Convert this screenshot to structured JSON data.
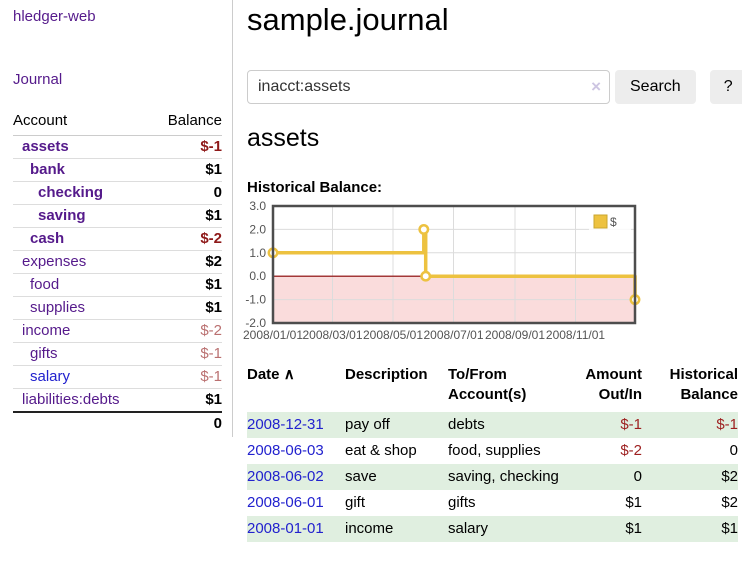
{
  "sidebar": {
    "brand": "hledger-web",
    "journal_link": "Journal",
    "accounts_table": {
      "header_account": "Account",
      "header_balance": "Balance",
      "rows": [
        {
          "name": "assets",
          "level": 1,
          "bold": true,
          "balance": "$-1",
          "tone": "neg"
        },
        {
          "name": "bank",
          "level": 2,
          "bold": true,
          "balance": "$1",
          "tone": "pos"
        },
        {
          "name": "checking",
          "level": 3,
          "bold": true,
          "balance": "0",
          "tone": "pos"
        },
        {
          "name": "saving",
          "level": 3,
          "bold": true,
          "balance": "$1",
          "tone": "pos"
        },
        {
          "name": "cash",
          "level": 2,
          "bold": true,
          "balance": "$-2",
          "tone": "neg"
        },
        {
          "name": "expenses",
          "level": 1,
          "bold": false,
          "balance": "$2",
          "tone": "pos"
        },
        {
          "name": "food",
          "level": 2,
          "bold": false,
          "balance": "$1",
          "tone": "pos"
        },
        {
          "name": "supplies",
          "level": 2,
          "bold": false,
          "balance": "$1",
          "tone": "pos"
        },
        {
          "name": "income",
          "level": 1,
          "bold": false,
          "balance": "$-2",
          "tone": "soft"
        },
        {
          "name": "gifts",
          "level": 2,
          "bold": false,
          "balance": "$-1",
          "tone": "soft"
        },
        {
          "name": "salary",
          "level": 2,
          "bold": false,
          "blue": true,
          "balance": "$-1",
          "tone": "soft"
        },
        {
          "name": "liabilities:debts",
          "level": 1,
          "bold": false,
          "balance": "$1",
          "tone": "pos"
        }
      ],
      "total": "0"
    }
  },
  "main": {
    "title": "sample.journal",
    "search": {
      "value": "inacct:assets",
      "clear_icon": "×",
      "button_label": "Search",
      "help_label": "?"
    },
    "account_heading": "assets",
    "chart_heading": "Historical Balance:",
    "register": {
      "headers": {
        "date": "Date",
        "sort_icon": "∧",
        "description": "Description",
        "accounts": "To/From Account(s)",
        "amount": "Amount Out/In",
        "balance": "Historical Balance"
      },
      "rows": [
        {
          "date": "2008-12-31",
          "description": "pay off",
          "accounts": "debts",
          "amount": "$-1",
          "amount_tone": "neg-t",
          "balance": "$-1",
          "balance_tone": "neg-t"
        },
        {
          "date": "2008-06-03",
          "description": "eat & shop",
          "accounts": "food, supplies",
          "amount": "$-2",
          "amount_tone": "neg-t",
          "balance": "0",
          "balance_tone": ""
        },
        {
          "date": "2008-06-02",
          "description": "save",
          "accounts": "saving, checking",
          "amount": "0",
          "amount_tone": "",
          "balance": "$2",
          "balance_tone": ""
        },
        {
          "date": "2008-06-01",
          "description": "gift",
          "accounts": "gifts",
          "amount": "$1",
          "amount_tone": "",
          "balance": "$2",
          "balance_tone": ""
        },
        {
          "date": "2008-01-01",
          "description": "income",
          "accounts": "salary",
          "amount": "$1",
          "amount_tone": "",
          "balance": "$1",
          "balance_tone": ""
        }
      ]
    }
  },
  "chart_data": {
    "type": "line",
    "step": true,
    "title": "Historical Balance:",
    "legend": "$",
    "legend_position": "top-right",
    "grid": true,
    "x_range": [
      "2008-01-01",
      "2008-12-31"
    ],
    "ylim": [
      -2,
      3
    ],
    "y_ticks": [
      "3.0",
      "2.0",
      "1.0",
      "0.0",
      "-1.0",
      "-2.0"
    ],
    "x_ticks": [
      {
        "date": "2008-01-01",
        "label": "2008/01/01"
      },
      {
        "date": "2008-03-01",
        "label": "2008/03/01"
      },
      {
        "date": "2008-05-01",
        "label": "2008/05/01"
      },
      {
        "date": "2008-07-01",
        "label": "2008/07/01"
      },
      {
        "date": "2008-09-01",
        "label": "2008/09/01"
      },
      {
        "date": "2008-11-01",
        "label": "2008/11/01"
      }
    ],
    "series": [
      {
        "name": "$",
        "color": "#EDC240",
        "points": [
          [
            "2008-01-01",
            1
          ],
          [
            "2008-06-01",
            2
          ],
          [
            "2008-06-03",
            0
          ],
          [
            "2008-12-31",
            -1
          ]
        ]
      }
    ],
    "colors": {
      "negative_region": "#fadcdc",
      "grid": "#dcdcdc",
      "zero_line": "#8b0000",
      "border": "#4d4d4d",
      "legend_box_border": "#c9a62e",
      "tick_label": "#545454"
    }
  },
  "colors": {
    "link_purple": "#551A8B",
    "link_blue": "#2222CE",
    "negative_strong": "#8E1919",
    "negative_soft": "#BA7070",
    "row_green": "#e0efe0"
  }
}
